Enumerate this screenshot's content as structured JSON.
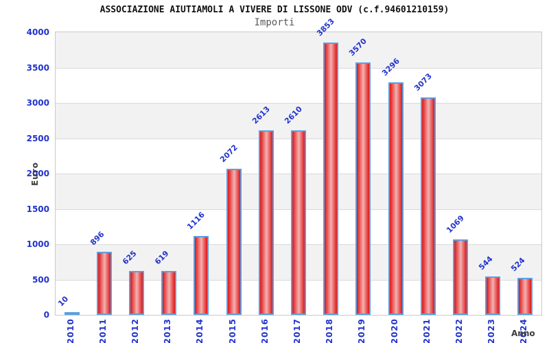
{
  "chart_data": {
    "type": "bar",
    "title": "ASSOCIAZIONE AIUTIAMOLI A VIVERE DI LISSONE ODV (c.f.94601210159)",
    "subtitle": "Importi",
    "xlabel": "Anno",
    "ylabel": "Euro",
    "categories": [
      "2010",
      "2011",
      "2012",
      "2013",
      "2014",
      "2015",
      "2016",
      "2017",
      "2018",
      "2019",
      "2020",
      "2021",
      "2022",
      "2023",
      "2024"
    ],
    "values": [
      10,
      896,
      625,
      619,
      1116,
      2072,
      2613,
      2610,
      3853,
      3570,
      3296,
      3073,
      1069,
      544,
      524
    ],
    "ylim": [
      0,
      4000
    ],
    "yticks": [
      0,
      500,
      1000,
      1500,
      2000,
      2500,
      3000,
      3500,
      4000
    ],
    "grid": true,
    "legend": false,
    "value_labels_rotated": true,
    "colors": {
      "label_blue": "#2233cc",
      "bar_border": "#5b9fe0",
      "bar_edge_red": "#de1818",
      "bar_mid_pink": "#f2b2b2",
      "band_gray": "#f2f2f2",
      "band_white": "#ffffff",
      "grid_line": "#d9d9d9",
      "plot_border": "#c9c9c9",
      "title_color": "#111111",
      "subtitle_color": "#5a5a5a",
      "axis_title_color": "#3d3d3d"
    }
  }
}
